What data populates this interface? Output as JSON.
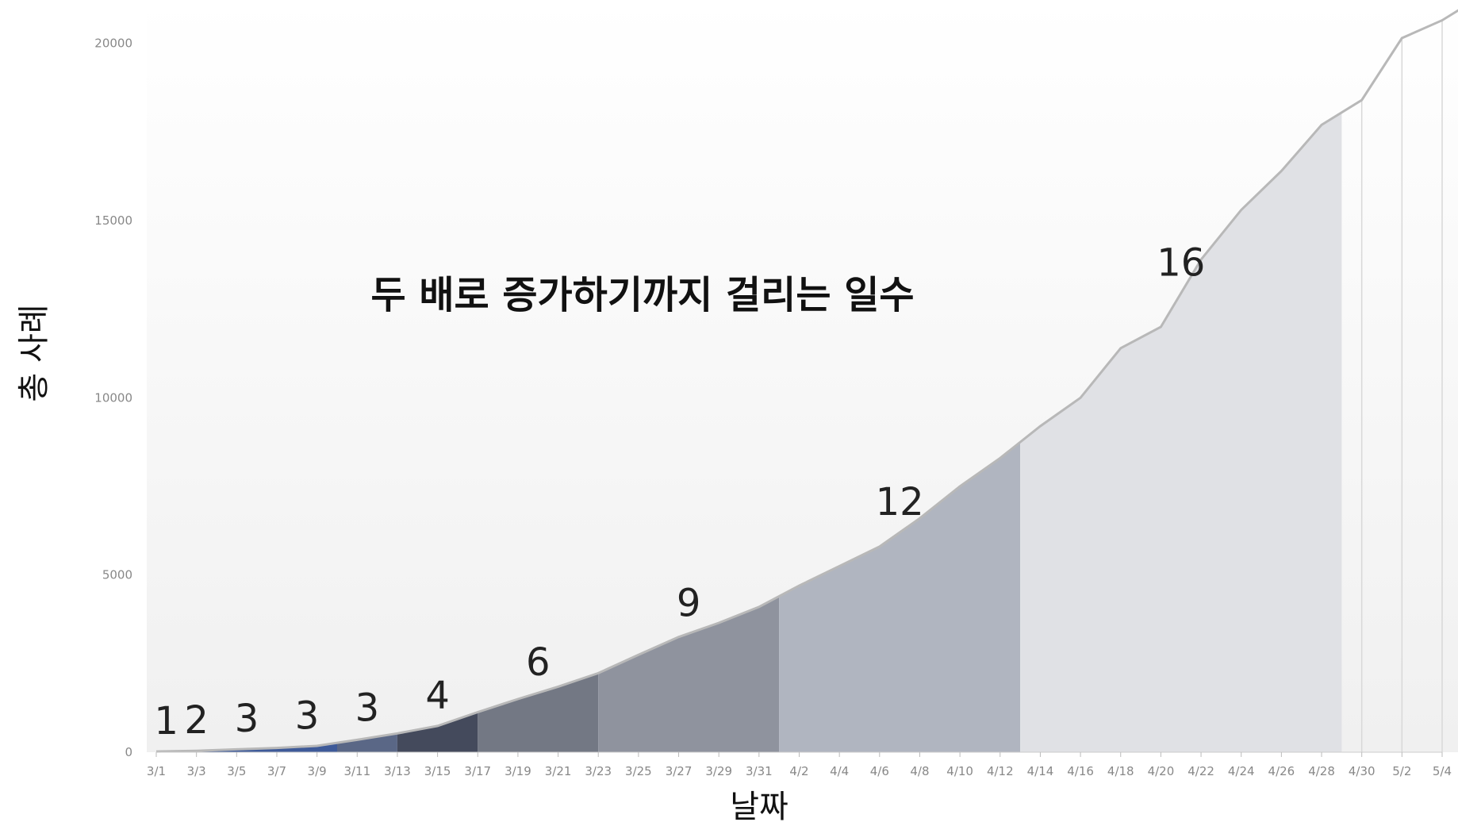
{
  "chart_data": {
    "type": "area",
    "title": "두 배로 증가하기까지 걸리는 일수",
    "xlabel": "날짜",
    "ylabel": "총 사례",
    "ylim": [
      0,
      21000
    ],
    "yticks": [
      0,
      5000,
      10000,
      15000,
      20000
    ],
    "xtick_labels": [
      "3/1",
      "3/3",
      "3/5",
      "3/7",
      "3/9",
      "3/11",
      "3/13",
      "3/15",
      "3/17",
      "3/19",
      "3/21",
      "3/23",
      "3/25",
      "3/27",
      "3/29",
      "3/31",
      "4/2",
      "4/4",
      "4/6",
      "4/8",
      "4/10",
      "4/12",
      "4/14",
      "4/16",
      "4/18",
      "4/20",
      "4/22",
      "4/24",
      "4/26",
      "4/28",
      "4/30",
      "5/2",
      "5/4"
    ],
    "grid": false,
    "series": [
      {
        "x": [
          "3/1",
          "3/3",
          "3/5",
          "3/7",
          "3/9",
          "3/11",
          "3/13",
          "3/15",
          "3/17",
          "3/19",
          "3/21",
          "3/23",
          "3/25",
          "3/27",
          "3/29",
          "3/31",
          "4/2",
          "4/4",
          "4/6",
          "4/8",
          "4/10",
          "4/12",
          "4/14",
          "4/16",
          "4/18",
          "4/20",
          "4/22",
          "4/24",
          "4/26",
          "4/28",
          "4/30",
          "5/2",
          "5/4",
          "5/5"
        ],
        "values": [
          20,
          40,
          80,
          120,
          180,
          350,
          530,
          740,
          1130,
          1500,
          1850,
          2230,
          2750,
          3250,
          3650,
          4100,
          4700,
          5250,
          5800,
          6600,
          7500,
          8300,
          9200,
          10000,
          11400,
          12000,
          13900,
          15300,
          16400,
          17700,
          18400,
          20150,
          20650,
          21000
        ]
      }
    ],
    "doubling_periods": [
      {
        "label": "1",
        "start": "3/1",
        "end": "3/2",
        "color": "#3e5a99"
      },
      {
        "label": "2",
        "start": "3/2",
        "end": "3/4",
        "color": "#3e5a99"
      },
      {
        "label": "3",
        "start": "3/4",
        "end": "3/7",
        "color": "#3e5a99"
      },
      {
        "label": "3",
        "start": "3/7",
        "end": "3/10",
        "color": "#3e5a99"
      },
      {
        "label": "3",
        "start": "3/10",
        "end": "3/13",
        "color": "#5a6786"
      },
      {
        "label": "4",
        "start": "3/13",
        "end": "3/17",
        "color": "#444a5c"
      },
      {
        "label": "6",
        "start": "3/17",
        "end": "3/23",
        "color": "#737884"
      },
      {
        "label": "9",
        "start": "3/23",
        "end": "4/1",
        "color": "#8f939e"
      },
      {
        "label": "12",
        "start": "4/1",
        "end": "4/13",
        "color": "#b0b5c0"
      },
      {
        "label": "16",
        "start": "4/13",
        "end": "4/29",
        "color": "#e0e1e5"
      }
    ]
  }
}
